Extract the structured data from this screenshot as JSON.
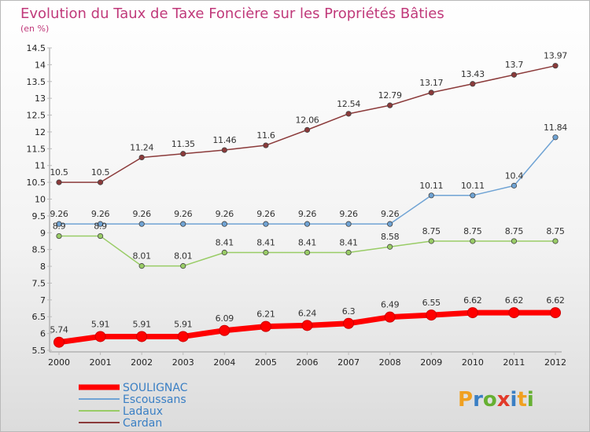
{
  "chart_data": {
    "type": "line",
    "title": "Evolution du Taux de Taxe Foncière sur les Propriétés Bâties",
    "subtitle": "(en %)",
    "xlabel": "",
    "ylabel": "",
    "x": [
      "2000",
      "2001",
      "2002",
      "2003",
      "2004",
      "2005",
      "2006",
      "2007",
      "2008",
      "2009",
      "2010",
      "2011",
      "2012"
    ],
    "ylim": [
      5.5,
      14.5
    ],
    "yticks": [
      "5.5",
      "6",
      "6.5",
      "7",
      "7.5",
      "8",
      "8.5",
      "9",
      "9.5",
      "10",
      "10.5",
      "11",
      "11.5",
      "12",
      "12.5",
      "13",
      "13.5",
      "14",
      "14.5"
    ],
    "grid": false,
    "legend_position": "bottom-left",
    "series": [
      {
        "name": "SOULIGNAC",
        "color": "#ff0000",
        "values": [
          5.74,
          5.91,
          5.91,
          5.91,
          6.09,
          6.21,
          6.24,
          6.3,
          6.49,
          6.55,
          6.62,
          6.62,
          6.62
        ],
        "labels": [
          "5.74",
          "5.91",
          "5.91",
          "5.91",
          "6.09",
          "6.21",
          "6.24",
          "6.3",
          "6.49",
          "6.55",
          "6.62",
          "6.62",
          "6.62"
        ]
      },
      {
        "name": "Escoussans",
        "color": "#6fa3d4",
        "values": [
          9.26,
          9.26,
          9.26,
          9.26,
          9.26,
          9.26,
          9.26,
          9.26,
          9.26,
          10.11,
          10.11,
          10.4,
          11.84
        ],
        "labels": [
          "9.26",
          "9.26",
          "9.26",
          "9.26",
          "9.26",
          "9.26",
          "9.26",
          "9.26",
          "9.26",
          "10.11",
          "10.11",
          "10.4",
          "11.84"
        ]
      },
      {
        "name": "Ladaux",
        "color": "#99cc66",
        "values": [
          8.9,
          8.9,
          8.01,
          8.01,
          8.41,
          8.41,
          8.41,
          8.41,
          8.58,
          8.75,
          8.75,
          8.75,
          8.75
        ],
        "labels": [
          "8.9",
          "8.9",
          "8.01",
          "8.01",
          "8.41",
          "8.41",
          "8.41",
          "8.41",
          "8.58",
          "8.75",
          "8.75",
          "8.75",
          "8.75"
        ]
      },
      {
        "name": "Cardan",
        "color": "#8b3a3a",
        "values": [
          10.5,
          10.5,
          11.24,
          11.35,
          11.46,
          11.6,
          12.06,
          12.54,
          12.79,
          13.17,
          13.43,
          13.7,
          13.97
        ],
        "labels": [
          "10.5",
          "10.5",
          "11.24",
          "11.35",
          "11.46",
          "11.6",
          "12.06",
          "12.54",
          "12.79",
          "13.17",
          "13.43",
          "13.7",
          "13.97"
        ]
      }
    ]
  },
  "branding": {
    "logo_text": "Proxiti"
  }
}
